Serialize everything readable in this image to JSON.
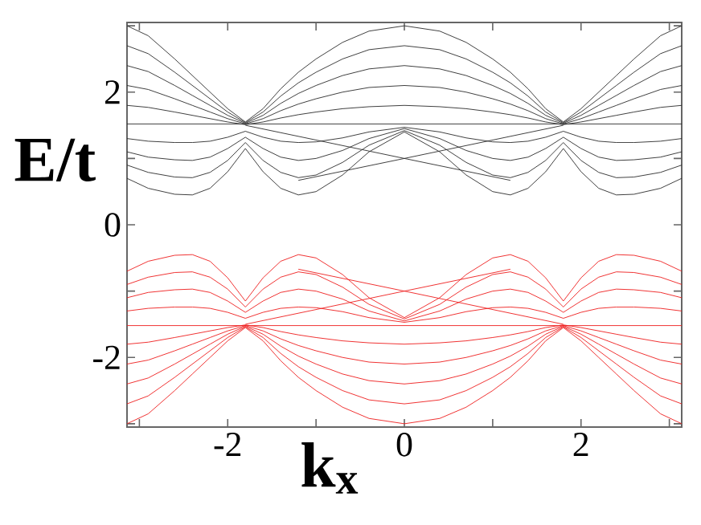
{
  "chart_data": {
    "type": "line",
    "xlabel": "k$_{x}$",
    "ylabel": "E/t",
    "marker": "none",
    "line_style": "solid",
    "xlim": [
      -3.14,
      3.14
    ],
    "ylim": [
      -3.05,
      3.05
    ],
    "xticks": [
      {
        "value": -3,
        "label": null
      },
      -2,
      {
        "value": -1,
        "label": null
      },
      0,
      {
        "value": 1,
        "label": null
      },
      2,
      {
        "value": 3,
        "label": null
      }
    ],
    "yticks": [
      {
        "value": -3,
        "label": null
      },
      -2,
      {
        "value": -1,
        "label": null
      },
      0,
      {
        "value": 1,
        "label": null
      },
      2,
      {
        "value": 3,
        "label": null
      }
    ],
    "x": [
      -3.14,
      -2.9,
      -2.6,
      -2.4,
      -2.2,
      -2.0,
      -1.8,
      -1.6,
      -1.4,
      -1.2,
      -1.0,
      -0.7,
      -0.4,
      0,
      0.4,
      0.7,
      1.0,
      1.2,
      1.4,
      1.6,
      1.8,
      2.0,
      2.2,
      2.4,
      2.6,
      2.9,
      3.14
    ],
    "series": [
      {
        "color": "#2a2a2a",
        "values": [
          3.0,
          2.85,
          2.5,
          2.25,
          2.0,
          1.75,
          1.55,
          1.75,
          2.05,
          2.3,
          2.5,
          2.75,
          2.92,
          3.0,
          2.92,
          2.75,
          2.5,
          2.3,
          2.05,
          1.75,
          1.55,
          1.75,
          2.0,
          2.25,
          2.5,
          2.85,
          3.0
        ]
      },
      {
        "color": "#2a2a2a",
        "values": [
          2.7,
          2.58,
          2.3,
          2.1,
          1.9,
          1.7,
          1.54,
          1.7,
          1.94,
          2.14,
          2.3,
          2.5,
          2.64,
          2.7,
          2.64,
          2.5,
          2.3,
          2.14,
          1.94,
          1.7,
          1.54,
          1.7,
          1.9,
          2.1,
          2.3,
          2.58,
          2.7
        ]
      },
      {
        "color": "#2a2a2a",
        "values": [
          2.4,
          2.31,
          2.1,
          1.95,
          1.8,
          1.65,
          1.53,
          1.65,
          1.83,
          1.98,
          2.1,
          2.25,
          2.35,
          2.4,
          2.35,
          2.25,
          2.1,
          1.98,
          1.83,
          1.65,
          1.53,
          1.65,
          1.8,
          1.95,
          2.1,
          2.31,
          2.4
        ]
      },
      {
        "color": "#2a2a2a",
        "values": [
          2.1,
          2.04,
          1.9,
          1.8,
          1.7,
          1.6,
          1.52,
          1.6,
          1.72,
          1.82,
          1.9,
          2.0,
          2.07,
          2.1,
          2.07,
          2.0,
          1.9,
          1.82,
          1.72,
          1.6,
          1.52,
          1.6,
          1.7,
          1.8,
          1.9,
          2.04,
          2.1
        ]
      },
      {
        "color": "#2a2a2a",
        "values": [
          1.8,
          1.77,
          1.7,
          1.65,
          1.6,
          1.55,
          1.51,
          1.55,
          1.61,
          1.66,
          1.7,
          1.75,
          1.78,
          1.8,
          1.78,
          1.75,
          1.7,
          1.66,
          1.61,
          1.55,
          1.51,
          1.55,
          1.6,
          1.65,
          1.7,
          1.77,
          1.8
        ]
      },
      {
        "color": "#2a2a2a",
        "values": [
          0.7,
          0.55,
          0.46,
          0.45,
          0.55,
          0.8,
          1.15,
          0.8,
          0.55,
          0.45,
          0.5,
          0.75,
          1.1,
          1.4,
          1.1,
          0.75,
          0.5,
          0.45,
          0.55,
          0.8,
          1.15,
          0.8,
          0.55,
          0.45,
          0.46,
          0.55,
          0.7
        ]
      },
      {
        "color": "#2a2a2a",
        "values": [
          0.9,
          0.79,
          0.72,
          0.71,
          0.79,
          0.97,
          1.24,
          0.97,
          0.79,
          0.71,
          0.75,
          0.94,
          1.2,
          1.42,
          1.2,
          0.94,
          0.75,
          0.71,
          0.79,
          0.97,
          1.24,
          0.97,
          0.79,
          0.71,
          0.72,
          0.79,
          0.9
        ]
      },
      {
        "color": "#2a2a2a",
        "values": [
          1.1,
          1.02,
          0.98,
          0.97,
          1.02,
          1.15,
          1.32,
          1.15,
          1.02,
          0.97,
          1.0,
          1.12,
          1.3,
          1.45,
          1.3,
          1.12,
          1.0,
          0.97,
          1.02,
          1.15,
          1.32,
          1.15,
          1.02,
          0.97,
          0.98,
          1.02,
          1.1
        ]
      },
      {
        "color": "#2a2a2a",
        "values": [
          1.3,
          1.26,
          1.24,
          1.24,
          1.26,
          1.32,
          1.41,
          1.32,
          1.26,
          1.24,
          1.25,
          1.31,
          1.4,
          1.47,
          1.4,
          1.31,
          1.25,
          1.24,
          1.26,
          1.32,
          1.41,
          1.32,
          1.26,
          1.24,
          1.24,
          1.26,
          1.3
        ]
      },
      {
        "color": "#2a2a2a",
        "x": [
          -3.14,
          3.14
        ],
        "values": [
          1.52,
          1.52
        ]
      },
      {
        "color": "#2a2a2a",
        "x": [
          -1.8,
          0,
          1.2
        ],
        "values": [
          1.5,
          1.0,
          0.67
        ]
      },
      {
        "color": "#2a2a2a",
        "x": [
          -1.2,
          0,
          1.8
        ],
        "values": [
          0.67,
          1.0,
          1.5
        ]
      },
      {
        "color": "#ee1c1c",
        "values": [
          -3.0,
          -2.85,
          -2.5,
          -2.25,
          -2.0,
          -1.75,
          -1.55,
          -1.75,
          -2.05,
          -2.3,
          -2.5,
          -2.75,
          -2.92,
          -3.0,
          -2.92,
          -2.75,
          -2.5,
          -2.3,
          -2.05,
          -1.75,
          -1.55,
          -1.75,
          -2.0,
          -2.25,
          -2.5,
          -2.85,
          -3.0
        ]
      },
      {
        "color": "#ee1c1c",
        "values": [
          -2.7,
          -2.58,
          -2.3,
          -2.1,
          -1.9,
          -1.7,
          -1.54,
          -1.7,
          -1.94,
          -2.14,
          -2.3,
          -2.5,
          -2.64,
          -2.7,
          -2.64,
          -2.5,
          -2.3,
          -2.14,
          -1.94,
          -1.7,
          -1.54,
          -1.7,
          -1.9,
          -2.1,
          -2.3,
          -2.58,
          -2.7
        ]
      },
      {
        "color": "#ee1c1c",
        "values": [
          -2.4,
          -2.31,
          -2.1,
          -1.95,
          -1.8,
          -1.65,
          -1.53,
          -1.65,
          -1.83,
          -1.98,
          -2.1,
          -2.25,
          -2.35,
          -2.4,
          -2.35,
          -2.25,
          -2.1,
          -1.98,
          -1.83,
          -1.65,
          -1.53,
          -1.65,
          -1.8,
          -1.95,
          -2.1,
          -2.31,
          -2.4
        ]
      },
      {
        "color": "#ee1c1c",
        "values": [
          -2.1,
          -2.04,
          -1.9,
          -1.8,
          -1.7,
          -1.6,
          -1.52,
          -1.6,
          -1.72,
          -1.82,
          -1.9,
          -2.0,
          -2.07,
          -2.1,
          -2.07,
          -2.0,
          -1.9,
          -1.82,
          -1.72,
          -1.6,
          -1.52,
          -1.6,
          -1.7,
          -1.8,
          -1.9,
          -2.04,
          -2.1
        ]
      },
      {
        "color": "#ee1c1c",
        "values": [
          -1.8,
          -1.77,
          -1.7,
          -1.65,
          -1.6,
          -1.55,
          -1.51,
          -1.55,
          -1.61,
          -1.66,
          -1.7,
          -1.75,
          -1.78,
          -1.8,
          -1.78,
          -1.75,
          -1.7,
          -1.66,
          -1.61,
          -1.55,
          -1.51,
          -1.55,
          -1.6,
          -1.65,
          -1.7,
          -1.77,
          -1.8
        ]
      },
      {
        "color": "#ee1c1c",
        "values": [
          -0.7,
          -0.55,
          -0.46,
          -0.45,
          -0.55,
          -0.8,
          -1.15,
          -0.8,
          -0.55,
          -0.45,
          -0.5,
          -0.75,
          -1.1,
          -1.4,
          -1.1,
          -0.75,
          -0.5,
          -0.45,
          -0.55,
          -0.8,
          -1.15,
          -0.8,
          -0.55,
          -0.45,
          -0.46,
          -0.55,
          -0.7
        ]
      },
      {
        "color": "#ee1c1c",
        "values": [
          -0.9,
          -0.79,
          -0.72,
          -0.71,
          -0.79,
          -0.97,
          -1.24,
          -0.97,
          -0.79,
          -0.71,
          -0.75,
          -0.94,
          -1.2,
          -1.42,
          -1.2,
          -0.94,
          -0.75,
          -0.71,
          -0.79,
          -0.97,
          -1.24,
          -0.97,
          -0.79,
          -0.71,
          -0.72,
          -0.79,
          -0.9
        ]
      },
      {
        "color": "#ee1c1c",
        "values": [
          -1.1,
          -1.02,
          -0.98,
          -0.97,
          -1.02,
          -1.15,
          -1.32,
          -1.15,
          -1.02,
          -0.97,
          -1.0,
          -1.12,
          -1.3,
          -1.45,
          -1.3,
          -1.12,
          -1.0,
          -0.97,
          -1.02,
          -1.15,
          -1.32,
          -1.15,
          -1.02,
          -0.97,
          -0.98,
          -1.02,
          -1.1
        ]
      },
      {
        "color": "#ee1c1c",
        "values": [
          -1.3,
          -1.26,
          -1.24,
          -1.24,
          -1.26,
          -1.32,
          -1.41,
          -1.32,
          -1.26,
          -1.24,
          -1.25,
          -1.31,
          -1.4,
          -1.47,
          -1.4,
          -1.31,
          -1.25,
          -1.24,
          -1.26,
          -1.32,
          -1.41,
          -1.32,
          -1.26,
          -1.24,
          -1.24,
          -1.26,
          -1.3
        ]
      },
      {
        "color": "#ee1c1c",
        "x": [
          -3.14,
          3.14
        ],
        "values": [
          -1.52,
          -1.52
        ]
      },
      {
        "color": "#ee1c1c",
        "x": [
          -1.8,
          0,
          1.2
        ],
        "values": [
          -1.5,
          -1.0,
          -0.67
        ]
      },
      {
        "color": "#ee1c1c",
        "x": [
          -1.2,
          0,
          1.8
        ],
        "values": [
          -0.67,
          -1.0,
          -1.5
        ]
      }
    ]
  }
}
